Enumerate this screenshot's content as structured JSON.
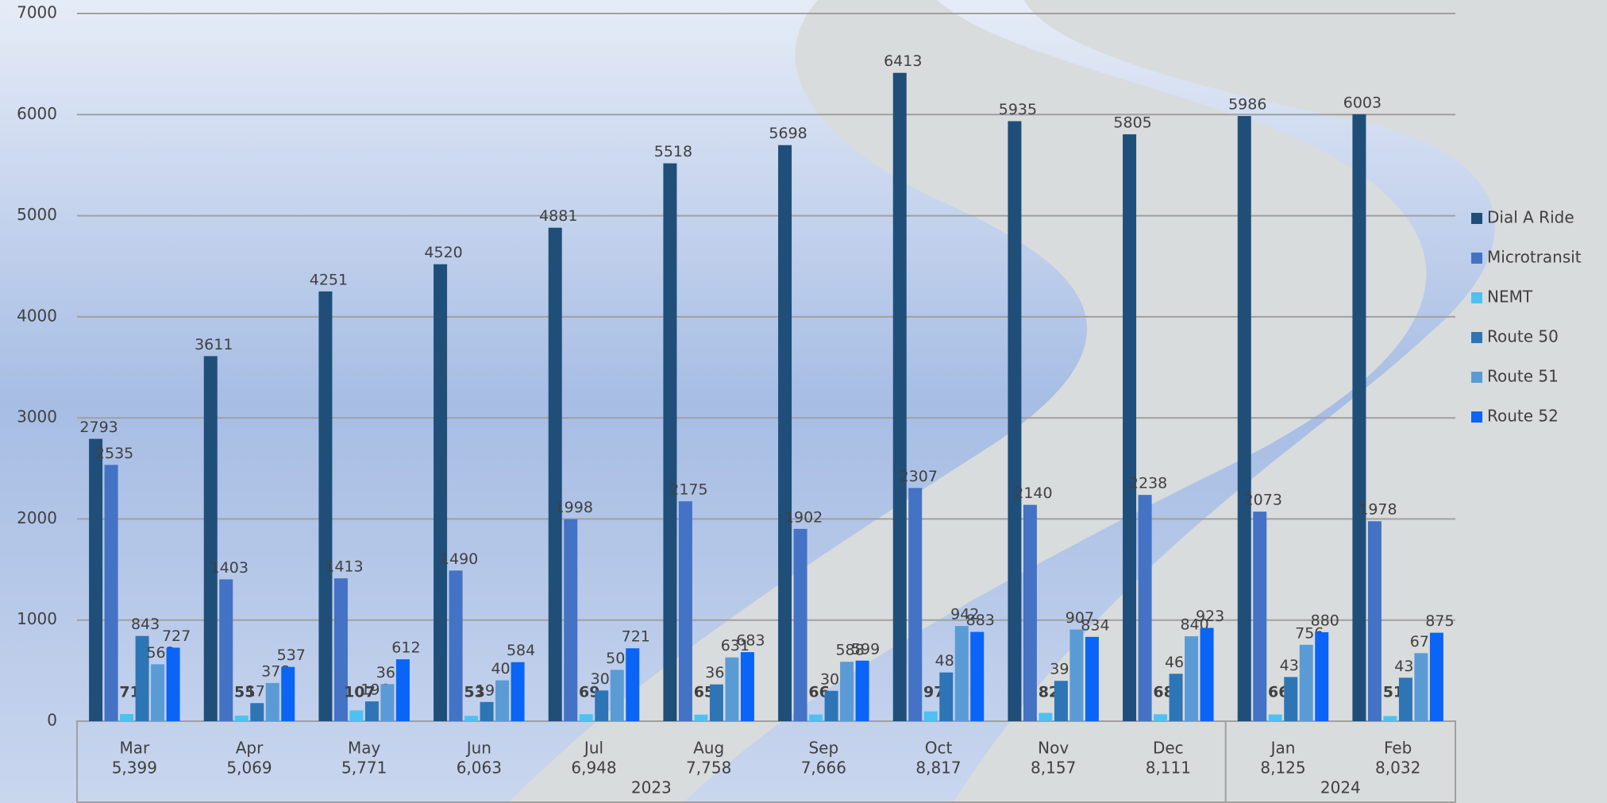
{
  "chart_data": {
    "type": "bar",
    "groups": [
      {
        "label": "2023",
        "categories": [
          "Mar",
          "Apr",
          "May",
          "Jun",
          "Jul",
          "Aug",
          "Sep",
          "Oct",
          "Nov",
          "Dec"
        ],
        "totals": [
          "5,399",
          "5,069",
          "5,771",
          "6,063",
          "6,948",
          "7,758",
          "7,666",
          "8,817",
          "8,157",
          "8,111"
        ]
      },
      {
        "label": "2024",
        "categories": [
          "Jan",
          "Feb"
        ],
        "totals": [
          "8,125",
          "8,032"
        ]
      }
    ],
    "series": [
      {
        "name": "Dial A Ride",
        "color": "#1f4e79",
        "values": [
          2793,
          3611,
          4251,
          4520,
          4881,
          5518,
          5698,
          6413,
          5935,
          5805,
          5986,
          6003
        ]
      },
      {
        "name": "Microtransit",
        "color": "#4472c4",
        "values": [
          2535,
          1403,
          1413,
          1490,
          1998,
          2175,
          1902,
          2307,
          2140,
          2238,
          2073,
          1978
        ]
      },
      {
        "name": "NEMT",
        "color": "#4fc1f0",
        "values": [
          71,
          55,
          107,
          53,
          69,
          65,
          66,
          97,
          82,
          68,
          66,
          51
        ]
      },
      {
        "name": "Route 50",
        "color": "#2e75b6",
        "values": [
          843,
          179,
          196,
          190,
          304,
          364,
          300,
          482,
          399,
          469,
          437,
          430
        ]
      },
      {
        "name": "Route 51",
        "color": "#5b9bd5",
        "values": [
          563,
          378,
          367,
          404,
          508,
          631,
          588,
          942,
          907,
          840,
          756,
          673
        ]
      },
      {
        "name": "Route 52",
        "color": "#0a64f5",
        "values": [
          727,
          537,
          612,
          584,
          721,
          683,
          599,
          883,
          834,
          923,
          880,
          875
        ]
      }
    ],
    "ylim": [
      0,
      7000
    ],
    "yticks": [
      0,
      1000,
      2000,
      3000,
      4000,
      5000,
      6000,
      7000
    ],
    "grid": true,
    "legend": "right",
    "bold_labels_series": "NEMT"
  }
}
